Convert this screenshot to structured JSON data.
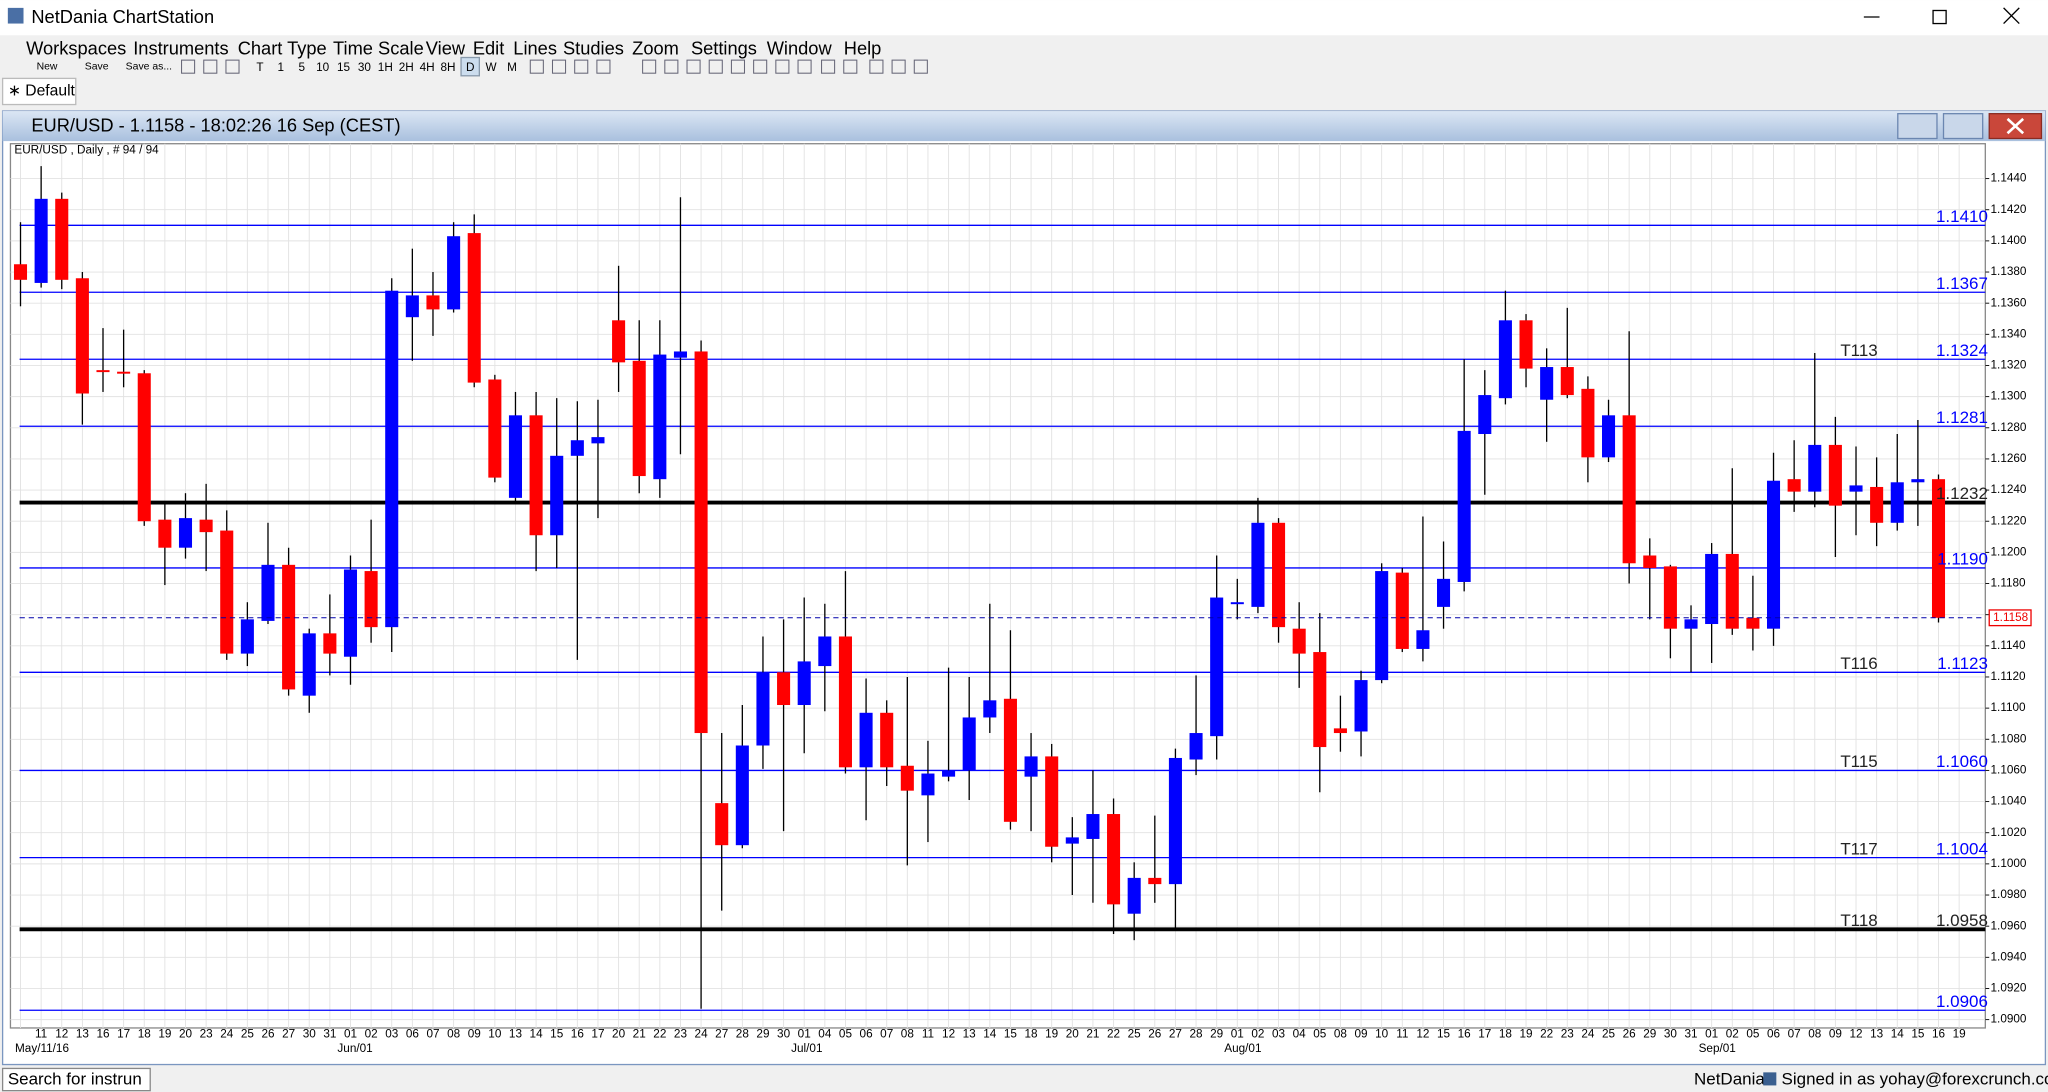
{
  "window": {
    "title": "NetDania ChartStation",
    "menu": [
      "Workspaces",
      "Instruments",
      "Chart Type",
      "Time Scale",
      "View",
      "Edit",
      "Lines",
      "Studies",
      "Zoom",
      "Settings",
      "Window",
      "Help"
    ],
    "toolbar_labels": [
      "New",
      "Save",
      "Save as..."
    ],
    "timeframes": [
      "T",
      "1",
      "5",
      "10",
      "15",
      "30",
      "1H",
      "2H",
      "4H",
      "8H",
      "D",
      "W",
      "M"
    ],
    "tab": "∗ Default",
    "status": {
      "search": "Search for instrun",
      "brand": "NetDania",
      "signed_in": "Signed in as yohay@forexcrunch.com"
    }
  },
  "chart_window_title": "EUR/USD - 1.1158 - 18:02:26  16 Sep (CEST)",
  "chart_data": {
    "type": "candlestick",
    "subtitle": "EUR/USD , Daily , # 94 / 94",
    "categories": [
      null,
      "11",
      "12",
      "13",
      "16",
      "17",
      "18",
      "19",
      "20",
      "23",
      "24",
      "25",
      "26",
      "27",
      "30",
      "31",
      "01",
      "02",
      "03",
      "06",
      "07",
      "08",
      "09",
      "10",
      "13",
      "14",
      "15",
      "16",
      "17",
      "20",
      "21",
      "22",
      "23",
      "24",
      "27",
      "28",
      "29",
      "30",
      "01",
      "04",
      "05",
      "06",
      "07",
      "08",
      "11",
      "12",
      "13",
      "14",
      "15",
      "18",
      "19",
      "20",
      "21",
      "22",
      "25",
      "26",
      "27",
      "28",
      "29",
      "01",
      "02",
      "03",
      "04",
      "05",
      "08",
      "09",
      "10",
      "11",
      "12",
      "15",
      "16",
      "17",
      "18",
      "19",
      "22",
      "23",
      "24",
      "25",
      "26",
      "29",
      "30",
      "31",
      "01",
      "02",
      "05",
      "06",
      "07",
      "08",
      "09",
      "12",
      "13",
      "14",
      "15",
      "16",
      "19"
    ],
    "month_labels": [
      "May/11/16",
      "Jun/01",
      "Jul/01",
      "Aug/01",
      "Sep/01"
    ],
    "open": [
      1.1385,
      1.1373,
      1.1427,
      1.1376,
      1.1317,
      1.1316,
      1.1315,
      1.1221,
      1.1203,
      1.1221,
      1.1214,
      1.1135,
      1.1156,
      1.1192,
      1.1108,
      1.1148,
      1.1133,
      1.1188,
      1.1152,
      1.1351,
      1.1365,
      1.1356,
      1.1405,
      1.1311,
      1.1235,
      1.1288,
      1.1211,
      1.1262,
      1.127,
      1.1349,
      1.1323,
      1.1247,
      1.1325,
      1.1329,
      1.1039,
      1.1012,
      1.1076,
      1.1123,
      1.1102,
      1.1127,
      1.1146,
      1.1062,
      1.1097,
      1.1063,
      1.1044,
      1.1056,
      1.106,
      1.1094,
      1.1106,
      1.1056,
      1.1069,
      1.1013,
      1.1016,
      1.1032,
      1.0968,
      1.0991,
      1.0987,
      1.1067,
      1.1082,
      1.1167,
      1.1165,
      1.1219,
      1.1151,
      1.1136,
      1.1087,
      1.1085,
      1.1118,
      1.1187,
      1.1138,
      1.1165,
      1.1181,
      1.1276,
      1.1299,
      1.1349,
      1.1298,
      1.1319,
      1.1305,
      1.1261,
      1.1288,
      1.1198,
      1.1191,
      1.1151,
      1.1154,
      1.1199,
      1.1158,
      1.1151,
      1.1247,
      1.1239,
      1.1269,
      1.1239,
      1.1242,
      1.1219,
      1.1245,
      1.1247,
      null
    ],
    "high": [
      1.1412,
      1.1448,
      1.1431,
      1.138,
      1.1344,
      1.1343,
      1.1317,
      1.1232,
      1.1238,
      1.1244,
      1.1227,
      1.1168,
      1.1219,
      1.1203,
      1.1151,
      1.1173,
      1.1198,
      1.1221,
      1.1376,
      1.1395,
      1.138,
      1.1412,
      1.1417,
      1.1314,
      1.1303,
      1.1303,
      1.1299,
      1.1297,
      1.1298,
      1.1384,
      1.1349,
      1.1349,
      1.1428,
      1.1336,
      1.1084,
      1.1102,
      1.1146,
      1.1157,
      1.1171,
      1.1167,
      1.1188,
      1.1119,
      1.1105,
      1.112,
      1.1079,
      1.1126,
      1.112,
      1.1167,
      1.115,
      1.1084,
      1.1077,
      1.103,
      1.106,
      1.1042,
      1.1001,
      1.1031,
      1.1074,
      1.1121,
      1.1198,
      1.1183,
      1.1235,
      1.1222,
      1.1168,
      1.1161,
      1.1108,
      1.1124,
      1.1193,
      1.119,
      1.1223,
      1.1207,
      1.1324,
      1.1317,
      1.1368,
      1.1353,
      1.1331,
      1.1357,
      1.1313,
      1.1298,
      1.1342,
      1.1209,
      1.1192,
      1.1166,
      1.1206,
      1.1254,
      1.1185,
      1.1264,
      1.1272,
      1.1328,
      1.1287,
      1.1268,
      1.1261,
      1.1276,
      1.1285,
      1.125,
      null
    ],
    "low": [
      1.1358,
      1.137,
      1.1369,
      1.1282,
      1.1303,
      1.1306,
      1.1217,
      1.1179,
      1.1196,
      1.1188,
      1.1131,
      1.1127,
      1.1154,
      1.1108,
      1.1097,
      1.1121,
      1.1115,
      1.1142,
      1.1136,
      1.1323,
      1.1339,
      1.1354,
      1.1306,
      1.1245,
      1.1232,
      1.1188,
      1.119,
      1.1131,
      1.1222,
      1.1303,
      1.1238,
      1.1235,
      1.1263,
      1.0907,
      1.097,
      1.101,
      1.1061,
      1.1021,
      1.1071,
      1.1098,
      1.1058,
      1.1028,
      1.105,
      1.0999,
      1.1014,
      1.1053,
      1.1041,
      1.1084,
      1.1022,
      1.1021,
      1.1001,
      1.098,
      1.0975,
      1.0955,
      1.0951,
      1.0975,
      1.0958,
      1.1057,
      1.1067,
      1.1157,
      1.1161,
      1.1142,
      1.1113,
      1.1046,
      1.1072,
      1.1069,
      1.1116,
      1.1136,
      1.113,
      1.1151,
      1.1175,
      1.1237,
      1.1295,
      1.1306,
      1.1271,
      1.1299,
      1.1245,
      1.1258,
      1.118,
      1.1157,
      1.1132,
      1.1123,
      1.1129,
      1.1147,
      1.1137,
      1.114,
      1.1226,
      1.1229,
      1.1197,
      1.1211,
      1.1204,
      1.1214,
      1.1217,
      1.1155,
      null
    ],
    "close": [
      1.1375,
      1.1427,
      1.1375,
      1.1302,
      1.1316,
      1.1315,
      1.122,
      1.1203,
      1.1222,
      1.1213,
      1.1135,
      1.1157,
      1.1192,
      1.1112,
      1.1148,
      1.1135,
      1.1189,
      1.1152,
      1.1368,
      1.1365,
      1.1356,
      1.1403,
      1.1309,
      1.1248,
      1.1288,
      1.1211,
      1.1262,
      1.1272,
      1.1274,
      1.1322,
      1.1249,
      1.1327,
      1.1329,
      1.1084,
      1.1012,
      1.1076,
      1.1123,
      1.1102,
      1.113,
      1.1146,
      1.1062,
      1.1097,
      1.1062,
      1.1047,
      1.1058,
      1.106,
      1.1094,
      1.1105,
      1.1027,
      1.1069,
      1.1011,
      1.1017,
      1.1032,
      1.0974,
      1.0991,
      1.0987,
      1.1068,
      1.1084,
      1.1171,
      1.1168,
      1.1219,
      1.1152,
      1.1135,
      1.1075,
      1.1084,
      1.1118,
      1.1188,
      1.1138,
      1.115,
      1.1183,
      1.1278,
      1.1301,
      1.1349,
      1.1318,
      1.1319,
      1.1301,
      1.1261,
      1.1288,
      1.1193,
      1.119,
      1.1151,
      1.1157,
      1.1199,
      1.1151,
      1.1151,
      1.1246,
      1.1239,
      1.1269,
      1.123,
      1.1243,
      1.1219,
      1.1245,
      1.1247,
      1.1158,
      null
    ],
    "up_color": "#0000ff",
    "down_color": "#ff0000",
    "ylim": [
      1.0898,
      1.1454
    ],
    "yticks": [
      {
        "value": 1.09,
        "label": "1.0900"
      },
      {
        "value": 1.092,
        "label": "1.0920"
      },
      {
        "value": 1.094,
        "label": "1.0940"
      },
      {
        "value": 1.096,
        "label": "1.0960"
      },
      {
        "value": 1.098,
        "label": "1.0980"
      },
      {
        "value": 1.1,
        "label": "1.1000"
      },
      {
        "value": 1.102,
        "label": "1.1020"
      },
      {
        "value": 1.104,
        "label": "1.1040"
      },
      {
        "value": 1.106,
        "label": "1.1060"
      },
      {
        "value": 1.108,
        "label": "1.1080"
      },
      {
        "value": 1.11,
        "label": "1.1100"
      },
      {
        "value": 1.112,
        "label": "1.1120"
      },
      {
        "value": 1.114,
        "label": "1.1140"
      },
      {
        "value": 1.116,
        "label": "1.1160"
      },
      {
        "value": 1.118,
        "label": "1.1180"
      },
      {
        "value": 1.12,
        "label": "1.1200"
      },
      {
        "value": 1.122,
        "label": "1.1220"
      },
      {
        "value": 1.124,
        "label": "1.1240"
      },
      {
        "value": 1.126,
        "label": "1.1260"
      },
      {
        "value": 1.128,
        "label": "1.1280"
      },
      {
        "value": 1.13,
        "label": "1.1300"
      },
      {
        "value": 1.132,
        "label": "1.1320"
      },
      {
        "value": 1.134,
        "label": "1.1340"
      },
      {
        "value": 1.136,
        "label": "1.1360"
      },
      {
        "value": 1.138,
        "label": "1.1380"
      },
      {
        "value": 1.14,
        "label": "1.1400"
      },
      {
        "value": 1.142,
        "label": "1.1420"
      },
      {
        "value": 1.144,
        "label": "1.1440"
      }
    ],
    "grid": true,
    "levels": [
      {
        "value": 1.141,
        "label": "1.1410"
      },
      {
        "value": 1.1367,
        "label": "1.1367"
      },
      {
        "value": 1.1324,
        "label": "1.1324",
        "tag": "T113"
      },
      {
        "value": 1.1281,
        "label": "1.1281"
      },
      {
        "value": 1.1232,
        "label": "1.1232",
        "thick": true
      },
      {
        "value": 1.119,
        "label": "1.1190"
      },
      {
        "value": 1.1123,
        "label": "1.1123",
        "tag": "T116"
      },
      {
        "value": 1.106,
        "label": "1.1060",
        "tag": "T115"
      },
      {
        "value": 1.1004,
        "label": "1.1004",
        "tag": "T117"
      },
      {
        "value": 1.0958,
        "label": "1.0958",
        "tag": "T118",
        "thick": true
      },
      {
        "value": 1.0906,
        "label": "1.0906"
      }
    ],
    "level_color": "#0000ff",
    "current_price": {
      "value": 1.1158,
      "label": "1.1158"
    }
  }
}
